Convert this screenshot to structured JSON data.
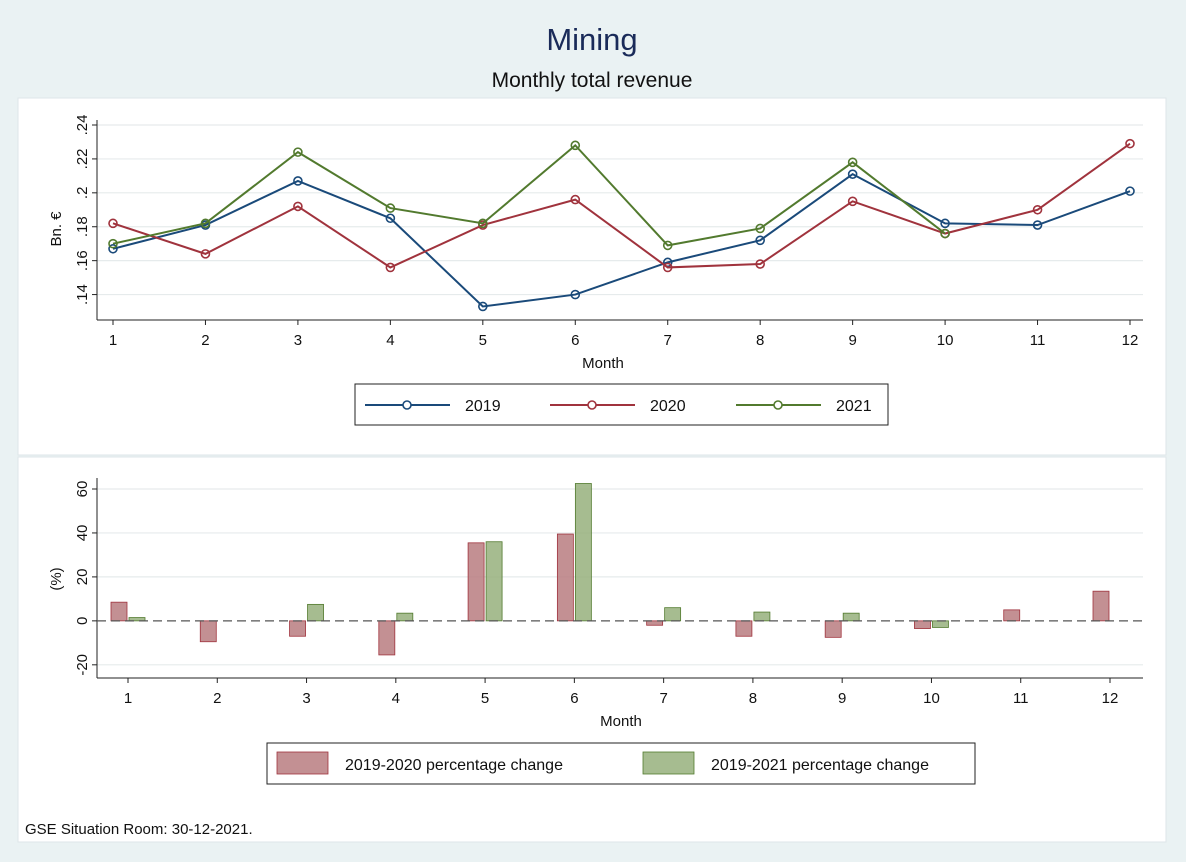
{
  "title": "Mining",
  "subtitle": "Monthly total revenue",
  "footer": "GSE Situation Room: 30-12-2021.",
  "colors": {
    "title": "#1a2b59",
    "s2019": "#1a4a7a",
    "s2020": "#a0333d",
    "s2021": "#527a2e",
    "bar2020": "#b87c80",
    "bar2021": "#96b07c",
    "grid": "#e6ebec",
    "outer_bg": "#eaf2f3",
    "panel_bg": "#ffffff"
  },
  "chart_data": [
    {
      "type": "line",
      "name": "revenue",
      "x": [
        1,
        2,
        3,
        4,
        5,
        6,
        7,
        8,
        9,
        10,
        11,
        12
      ],
      "xlabel": "Month",
      "ylabel": "Bn. €",
      "ylim": [
        0.125,
        0.24
      ],
      "yticks": [
        0.14,
        0.16,
        0.18,
        0.2,
        0.22,
        0.24
      ],
      "ytick_labels": [
        ".14",
        ".16",
        ".18",
        ".2",
        ".22",
        ".24"
      ],
      "grid": true,
      "legend_position": "bottom",
      "series": [
        {
          "name": "2019",
          "values": [
            0.167,
            0.181,
            0.207,
            0.185,
            0.133,
            0.14,
            0.159,
            0.172,
            0.211,
            0.182,
            0.181,
            0.201
          ]
        },
        {
          "name": "2020",
          "values": [
            0.182,
            0.164,
            0.192,
            0.156,
            0.181,
            0.196,
            0.156,
            0.158,
            0.195,
            0.176,
            0.19,
            0.229
          ]
        },
        {
          "name": "2021",
          "values": [
            0.17,
            0.182,
            0.224,
            0.191,
            0.182,
            0.228,
            0.169,
            0.179,
            0.218,
            0.176,
            null,
            null
          ]
        }
      ]
    },
    {
      "type": "bar",
      "name": "percentage-change",
      "categories": [
        1,
        2,
        3,
        4,
        5,
        6,
        7,
        8,
        9,
        10,
        11,
        12
      ],
      "xlabel": "Month",
      "ylabel": "(%)",
      "ylim": [
        -26,
        65
      ],
      "yticks": [
        -20,
        0,
        20,
        40,
        60
      ],
      "ytick_labels": [
        "-20",
        "0",
        "20",
        "40",
        "60"
      ],
      "grid": true,
      "zero_line": "dashed",
      "legend_position": "bottom",
      "series": [
        {
          "name": "2019-2020 percentage change",
          "values": [
            8.5,
            -9.5,
            -7,
            -15.5,
            35.5,
            39.5,
            -2,
            -7,
            -7.5,
            -3.5,
            5,
            13.5
          ]
        },
        {
          "name": "2019-2021 percentage change",
          "values": [
            1.5,
            0,
            7.5,
            3.5,
            36,
            62.5,
            6,
            4,
            3.5,
            -3,
            null,
            null
          ]
        }
      ]
    }
  ]
}
